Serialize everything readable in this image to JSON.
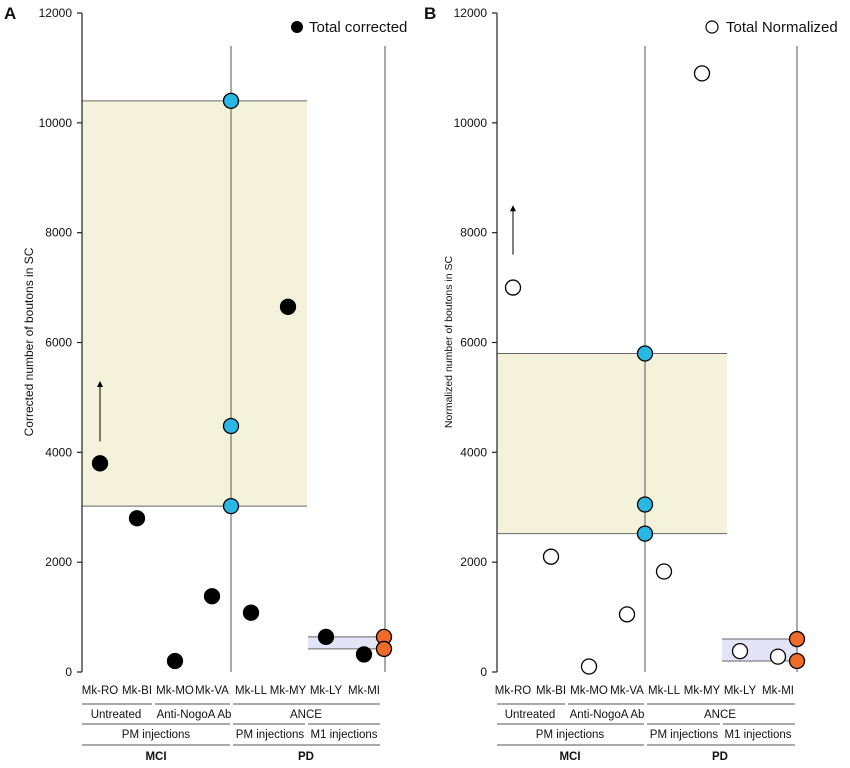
{
  "colors": {
    "band_fill": "#f5f2dc",
    "range_fill": "#e4e4f8",
    "treated_point": "#29b8e4",
    "pd_point": "#ef6b2a",
    "black_point": "#000000",
    "axis": "#222222"
  },
  "chart_data": [
    {
      "panel": "A",
      "type": "scatter",
      "ylabel": "Corrected number of boutons in SC",
      "ylim": [
        0,
        12000
      ],
      "yticks": [
        0,
        2000,
        4000,
        6000,
        8000,
        10000,
        12000
      ],
      "legend": {
        "label": "Total corrected",
        "marker": "filled",
        "position": "top-right"
      },
      "categories": [
        "Mk-RO",
        "Mk-BI",
        "Mk-MO",
        "Mk-VA",
        "Mk-LL",
        "Mk-MY",
        "Mk-LY",
        "Mk-MI"
      ],
      "points": [
        {
          "category": "Mk-RO",
          "y": 3800,
          "style": "filled"
        },
        {
          "category": "Mk-BI",
          "y": 2800,
          "style": "filled"
        },
        {
          "category": "Mk-MO",
          "y": 200,
          "style": "filled"
        },
        {
          "category": "Mk-VA",
          "y": 1380,
          "style": "filled"
        },
        {
          "category": "Mk-LL",
          "y": 1080,
          "style": "filled"
        },
        {
          "category": "Mk-MY",
          "y": 6650,
          "style": "filled"
        },
        {
          "category": "Mk-LY",
          "y": 640,
          "style": "filled"
        },
        {
          "category": "Mk-MI",
          "y": 320,
          "style": "filled"
        }
      ],
      "range_points": [
        {
          "y": 10400,
          "color": "treated"
        },
        {
          "y": 4480,
          "color": "treated"
        },
        {
          "y": 3020,
          "color": "treated"
        },
        {
          "y": 640,
          "color": "pd"
        },
        {
          "y": 420,
          "color": "pd"
        }
      ],
      "band": {
        "y0": 3020,
        "y1": 10400
      },
      "pd_band": {
        "y0": 420,
        "y1": 640
      },
      "arrow": {
        "category": "Mk-RO",
        "y_from": 4200,
        "y_to": 5300
      }
    },
    {
      "panel": "B",
      "type": "scatter",
      "ylabel": "Normalized number of boutons in SC",
      "ylim": [
        0,
        12000
      ],
      "yticks": [
        0,
        2000,
        4000,
        6000,
        8000,
        10000,
        12000
      ],
      "legend": {
        "label": "Total Normalized",
        "marker": "open",
        "position": "top-right"
      },
      "categories": [
        "Mk-RO",
        "Mk-BI",
        "Mk-MO",
        "Mk-VA",
        "Mk-LL",
        "Mk-MY",
        "Mk-LY",
        "Mk-MI"
      ],
      "points": [
        {
          "category": "Mk-RO",
          "y": 7000,
          "style": "open"
        },
        {
          "category": "Mk-BI",
          "y": 2100,
          "style": "open"
        },
        {
          "category": "Mk-MO",
          "y": 100,
          "style": "open"
        },
        {
          "category": "Mk-VA",
          "y": 1050,
          "style": "open"
        },
        {
          "category": "Mk-LL",
          "y": 1830,
          "style": "open"
        },
        {
          "category": "Mk-MY",
          "y": 10900,
          "style": "open"
        },
        {
          "category": "Mk-LY",
          "y": 380,
          "style": "open"
        },
        {
          "category": "Mk-MI",
          "y": 280,
          "style": "open"
        }
      ],
      "range_points": [
        {
          "y": 5800,
          "color": "treated"
        },
        {
          "y": 3050,
          "color": "treated"
        },
        {
          "y": 2520,
          "color": "treated"
        },
        {
          "y": 600,
          "color": "pd"
        },
        {
          "y": 200,
          "color": "pd"
        }
      ],
      "band": {
        "y0": 2520,
        "y1": 5800
      },
      "pd_band": {
        "y0": 200,
        "y1": 600
      },
      "arrow": {
        "category": "Mk-RO",
        "y_from": 7600,
        "y_to": 8500
      }
    }
  ],
  "group_labels": {
    "untreated": "Untreated",
    "anti_nogo": "Anti-NogoA Ab",
    "ance": "ANCE",
    "pm_injections": "PM injections",
    "m1_injections": "M1 injections",
    "mci": "MCI",
    "pd": "PD"
  }
}
